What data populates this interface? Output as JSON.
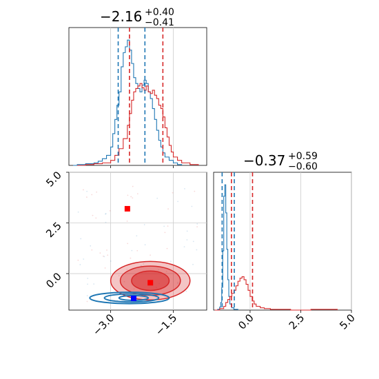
{
  "chart_data": {
    "type": "corner",
    "colors": {
      "blue": "#1f77b4",
      "red": "#d62728",
      "grid": "#cccccc",
      "axis": "#000000",
      "marker_red": "#ff0000",
      "marker_blue": "#0000ff"
    },
    "params": [
      {
        "title_main": "−2.16",
        "title_plus": "+0.40",
        "title_minus": "−0.41"
      },
      {
        "title_main": "−0.37",
        "title_plus": "+0.59",
        "title_minus": "−0.60"
      }
    ],
    "x_range_p0": [
      -4.0,
      -0.7
    ],
    "x_range_p1": [
      -1.8,
      5.0
    ],
    "y_range_p1": [
      -1.8,
      5.0
    ],
    "x_ticks_p0": [
      {
        "value": -3.0,
        "label": "−3.0"
      },
      {
        "value": -1.5,
        "label": "−1.5"
      }
    ],
    "ticks_p1": [
      {
        "value": 0.0,
        "label": "0.0"
      },
      {
        "value": 2.5,
        "label": "2.5"
      },
      {
        "value": 5.0,
        "label": "5.0"
      }
    ],
    "quantiles": {
      "p0_blue": [
        -2.82,
        -2.18
      ],
      "p0_red": [
        -2.55,
        -1.75
      ],
      "p1_blue": [
        -1.38,
        -0.78
      ],
      "p1_red": [
        -0.92,
        0.12
      ]
    },
    "hist_p0": {
      "blue": [
        [
          -3.9,
          0
        ],
        [
          -3.8,
          1
        ],
        [
          -3.6,
          2
        ],
        [
          -3.4,
          3
        ],
        [
          -3.3,
          5
        ],
        [
          -3.2,
          8
        ],
        [
          -3.1,
          12
        ],
        [
          -3.0,
          22
        ],
        [
          -2.95,
          38
        ],
        [
          -2.9,
          55
        ],
        [
          -2.85,
          72
        ],
        [
          -2.8,
          88
        ],
        [
          -2.75,
          118
        ],
        [
          -2.7,
          135
        ],
        [
          -2.65,
          142
        ],
        [
          -2.6,
          150
        ],
        [
          -2.55,
          138
        ],
        [
          -2.5,
          122
        ],
        [
          -2.45,
          105
        ],
        [
          -2.4,
          98
        ],
        [
          -2.35,
          92
        ],
        [
          -2.3,
          88
        ],
        [
          -2.25,
          96
        ],
        [
          -2.2,
          102
        ],
        [
          -2.15,
          98
        ],
        [
          -2.1,
          88
        ],
        [
          -2.05,
          80
        ],
        [
          -2.0,
          68
        ],
        [
          -1.95,
          55
        ],
        [
          -1.9,
          42
        ],
        [
          -1.85,
          30
        ],
        [
          -1.8,
          22
        ],
        [
          -1.75,
          15
        ],
        [
          -1.7,
          10
        ],
        [
          -1.6,
          6
        ],
        [
          -1.5,
          3
        ],
        [
          -1.4,
          1
        ],
        [
          -1.3,
          0
        ]
      ],
      "red": [
        [
          -3.8,
          0
        ],
        [
          -3.6,
          1
        ],
        [
          -3.4,
          2
        ],
        [
          -3.2,
          3
        ],
        [
          -3.0,
          6
        ],
        [
          -2.9,
          12
        ],
        [
          -2.8,
          20
        ],
        [
          -2.7,
          32
        ],
        [
          -2.6,
          48
        ],
        [
          -2.55,
          62
        ],
        [
          -2.5,
          78
        ],
        [
          -2.45,
          88
        ],
        [
          -2.4,
          92
        ],
        [
          -2.35,
          95
        ],
        [
          -2.3,
          98
        ],
        [
          -2.25,
          93
        ],
        [
          -2.2,
          90
        ],
        [
          -2.15,
          95
        ],
        [
          -2.1,
          88
        ],
        [
          -2.05,
          86
        ],
        [
          -2.0,
          90
        ],
        [
          -1.95,
          84
        ],
        [
          -1.9,
          80
        ],
        [
          -1.85,
          72
        ],
        [
          -1.8,
          68
        ],
        [
          -1.75,
          58
        ],
        [
          -1.7,
          45
        ],
        [
          -1.65,
          34
        ],
        [
          -1.6,
          24
        ],
        [
          -1.55,
          16
        ],
        [
          -1.5,
          10
        ],
        [
          -1.4,
          6
        ],
        [
          -1.3,
          3
        ],
        [
          -1.1,
          1
        ],
        [
          -0.9,
          0
        ]
      ]
    },
    "hist_p1": {
      "blue": [
        [
          -1.75,
          0
        ],
        [
          -1.6,
          1
        ],
        [
          -1.5,
          4
        ],
        [
          -1.45,
          10
        ],
        [
          -1.4,
          30
        ],
        [
          -1.35,
          78
        ],
        [
          -1.3,
          150
        ],
        [
          -1.25,
          165
        ],
        [
          -1.2,
          128
        ],
        [
          -1.15,
          80
        ],
        [
          -1.1,
          40
        ],
        [
          -1.05,
          18
        ],
        [
          -1.0,
          8
        ],
        [
          -0.9,
          3
        ],
        [
          -0.8,
          1
        ],
        [
          -0.6,
          0
        ]
      ],
      "red": [
        [
          -1.75,
          0
        ],
        [
          -1.5,
          2
        ],
        [
          -1.3,
          5
        ],
        [
          -1.2,
          10
        ],
        [
          -1.1,
          14
        ],
        [
          -1.0,
          18
        ],
        [
          -0.9,
          22
        ],
        [
          -0.8,
          26
        ],
        [
          -0.7,
          32
        ],
        [
          -0.6,
          38
        ],
        [
          -0.5,
          42
        ],
        [
          -0.4,
          44
        ],
        [
          -0.3,
          40
        ],
        [
          -0.2,
          34
        ],
        [
          -0.1,
          26
        ],
        [
          0.0,
          18
        ],
        [
          0.1,
          12
        ],
        [
          0.2,
          8
        ],
        [
          0.3,
          5
        ],
        [
          0.5,
          3
        ],
        [
          0.7,
          2
        ],
        [
          1.0,
          1
        ],
        [
          1.5,
          1
        ],
        [
          2.0,
          0
        ],
        [
          3.0,
          1
        ],
        [
          4.0,
          1
        ],
        [
          4.3,
          0
        ]
      ]
    },
    "contours_red": [
      {
        "cx": -2.05,
        "cy": -0.35,
        "rx": 0.95,
        "ry": 0.95,
        "opacity": 0.45
      },
      {
        "cx": -2.05,
        "cy": -0.35,
        "rx": 0.72,
        "ry": 0.72,
        "opacity": 0.6
      },
      {
        "cx": -2.05,
        "cy": -0.35,
        "rx": 0.45,
        "ry": 0.48,
        "opacity": 0.85
      }
    ],
    "contours_blue": [
      {
        "cx": -2.55,
        "cy": -1.2,
        "rx": 0.95,
        "ry": 0.28
      },
      {
        "cx": -2.5,
        "cy": -1.2,
        "rx": 0.65,
        "ry": 0.2
      },
      {
        "cx": -2.45,
        "cy": -1.2,
        "rx": 0.35,
        "ry": 0.12
      }
    ],
    "markers": [
      {
        "color": "red",
        "x": -2.6,
        "y": 3.2
      },
      {
        "color": "red",
        "x": -2.05,
        "y": -0.45
      },
      {
        "color": "blue",
        "x": -2.45,
        "y": -1.22
      }
    ]
  }
}
